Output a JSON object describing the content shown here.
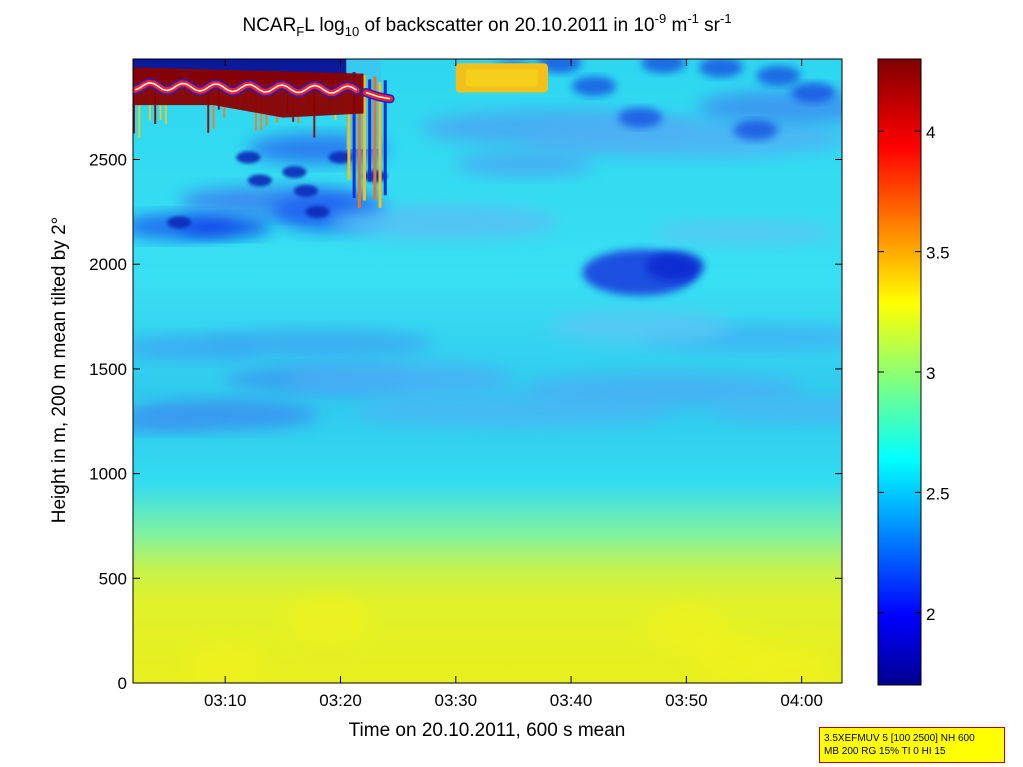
{
  "figure": {
    "title_prefix": "NCAR",
    "title_sub_f": "F",
    "title_part2": "L log",
    "title_sub_10": "10",
    "title_part3": " of backscatter on 20.10.2011 in 10",
    "title_sup_1": "-9",
    "title_part4": " m",
    "title_sup_2": "-1",
    "title_part5": " sr",
    "title_sup_3": "-1",
    "xlabel": "Time on 20.10.2011, 600 s mean",
    "ylabel": "Height in m, 200 m mean tilted by 2°",
    "params_line1": "3.5XEFMUV 5 [100 2500] NH 600",
    "params_line2": "MB 200 RG 15% TI 0 HI 15"
  },
  "chart_data": {
    "type": "heatmap",
    "x_ticks": [
      "03:10",
      "03:20",
      "03:30",
      "03:40",
      "03:50",
      "04:00"
    ],
    "x_tick_minutes": [
      190,
      200,
      210,
      220,
      230,
      240
    ],
    "xlim_minutes": [
      182,
      243.5
    ],
    "y_ticks": [
      0,
      500,
      1000,
      1500,
      2000,
      2500
    ],
    "ylim": [
      0,
      2980
    ],
    "colorbar": {
      "ticks": [
        2,
        2.5,
        3,
        3.5,
        4
      ],
      "range": [
        1.7,
        4.3
      ],
      "colormap": "jet"
    },
    "colors": {
      "surface_yellow": "#e6ef16",
      "mid_cyan": "#26e3f0",
      "low_blue": "#1c5cf0",
      "deep_blue": "#0a1a9a",
      "cloud_red": "#8b0000",
      "cloud_layer_line": "#ff2a2a",
      "cloud_highlight_white": "#ffffff"
    },
    "features": [
      {
        "type": "gradient-layer",
        "description_values": "log10 backscatter ~3.2-3.4 from 0 to ~600 m"
      },
      {
        "type": "gradient-layer",
        "description_values": "log10 backscatter ~2.5-2.8 from ~1000 to ~2900 m"
      },
      {
        "type": "blob",
        "t_start": 210,
        "t_end": 218,
        "h_start": 2820,
        "h_end": 2960,
        "value": 3.5
      },
      {
        "type": "blob",
        "t_start": 221,
        "t_end": 231,
        "h_start": 1860,
        "h_end": 2040,
        "value": 2.1
      },
      {
        "type": "cloud-layer",
        "t_start": 182,
        "t_end": 202,
        "h_start": 2700,
        "h_end": 2940,
        "value": 4.3
      }
    ]
  }
}
